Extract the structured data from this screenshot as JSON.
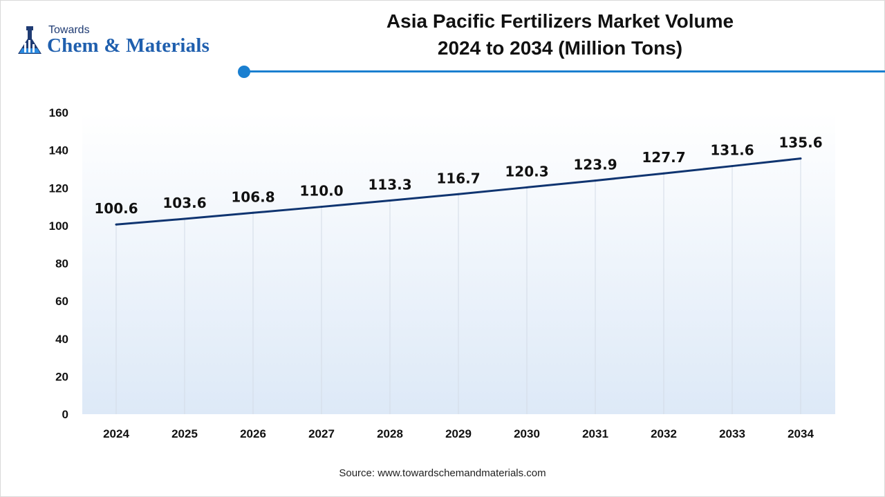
{
  "brand": {
    "line1": "Towards",
    "line2": "Chem & Materials",
    "color": "#1f5fae"
  },
  "header": {
    "title_line1": "Asia Pacific Fertilizers Market Volume",
    "title_line2": "2024 to 2034 (Million Tons)",
    "accent_color": "#1a7fd0"
  },
  "footer": {
    "source": "Source: www.towardschemandmaterials.com"
  },
  "chart_data": {
    "type": "line",
    "categories": [
      "2024",
      "2025",
      "2026",
      "2027",
      "2028",
      "2029",
      "2030",
      "2031",
      "2032",
      "2033",
      "2034"
    ],
    "series": [
      {
        "values": [
          100.6,
          103.6,
          106.8,
          110.0,
          113.3,
          116.7,
          120.3,
          123.9,
          127.7,
          131.6,
          135.6
        ]
      }
    ],
    "data_labels": [
      "100.6",
      "103.6",
      "106.8",
      "110.0",
      "113.3",
      "116.7",
      "120.3",
      "123.9",
      "127.7",
      "131.6",
      "135.6"
    ],
    "ylim": [
      0,
      160
    ],
    "y_ticks": [
      0,
      20,
      40,
      60,
      80,
      100,
      120,
      140,
      160
    ],
    "grid": "vertical",
    "line_color": "#0f3470",
    "xlabel": "",
    "ylabel": ""
  }
}
